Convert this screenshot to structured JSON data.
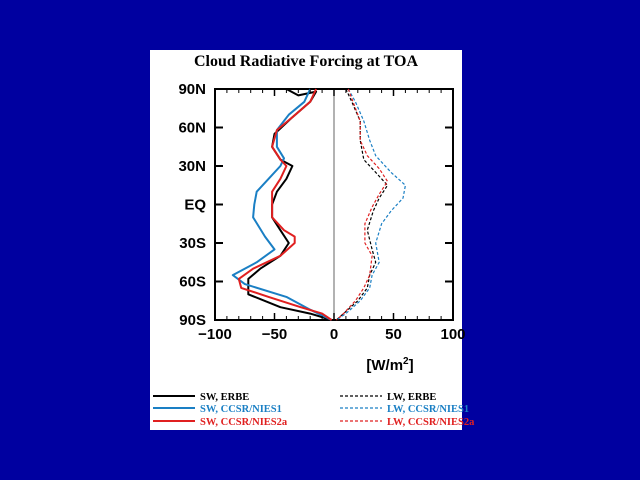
{
  "chart_data": {
    "type": "line",
    "title": "Cloud Radiative Forcing at TOA",
    "xlabel": "[W/m²]",
    "ylabel": "",
    "xlim": [
      -100,
      100
    ],
    "ylim": [
      -90,
      90
    ],
    "x_ticks": [
      "−100",
      "−50",
      "0",
      "50",
      "100"
    ],
    "y_ticks": [
      {
        "label": "90N",
        "lat": 90
      },
      {
        "label": "60N",
        "lat": 60
      },
      {
        "label": "30N",
        "lat": 30
      },
      {
        "label": "EQ",
        "lat": 0
      },
      {
        "label": "30S",
        "lat": -30
      },
      {
        "label": "60S",
        "lat": -60
      },
      {
        "label": "90S",
        "lat": -90
      }
    ],
    "x_units_label": "[W/m",
    "x_units_sup": "2",
    "x_units_close": "]",
    "series": [
      {
        "name": "SW, ERBE",
        "color": "#000000",
        "dash": "solid",
        "points": [
          [
            -40,
            90
          ],
          [
            -30,
            85
          ],
          [
            -15,
            88
          ],
          [
            -20,
            80
          ],
          [
            -35,
            68
          ],
          [
            -50,
            55
          ],
          [
            -52,
            45
          ],
          [
            -45,
            35
          ],
          [
            -35,
            30
          ],
          [
            -40,
            20
          ],
          [
            -48,
            10
          ],
          [
            -52,
            0
          ],
          [
            -52,
            -10
          ],
          [
            -45,
            -20
          ],
          [
            -38,
            -30
          ],
          [
            -45,
            -40
          ],
          [
            -62,
            -50
          ],
          [
            -72,
            -58
          ],
          [
            -72,
            -70
          ],
          [
            -45,
            -80
          ],
          [
            -20,
            -85
          ],
          [
            -2,
            -90
          ]
        ]
      },
      {
        "name": "SW, CCSR/NIES1",
        "color": "#1a7fc4",
        "dash": "solid",
        "points": [
          [
            -20,
            90
          ],
          [
            -25,
            80
          ],
          [
            -38,
            70
          ],
          [
            -48,
            58
          ],
          [
            -48,
            45
          ],
          [
            -42,
            36
          ],
          [
            -45,
            30
          ],
          [
            -55,
            20
          ],
          [
            -65,
            10
          ],
          [
            -67,
            0
          ],
          [
            -68,
            -10
          ],
          [
            -58,
            -25
          ],
          [
            -50,
            -35
          ],
          [
            -65,
            -45
          ],
          [
            -85,
            -55
          ],
          [
            -75,
            -62
          ],
          [
            -40,
            -72
          ],
          [
            -20,
            -82
          ],
          [
            -2,
            -90
          ]
        ]
      },
      {
        "name": "SW, CCSR/NIES2a",
        "color": "#e02020",
        "dash": "solid",
        "points": [
          [
            -15,
            90
          ],
          [
            -20,
            80
          ],
          [
            -35,
            68
          ],
          [
            -48,
            58
          ],
          [
            -52,
            45
          ],
          [
            -45,
            35
          ],
          [
            -40,
            30
          ],
          [
            -45,
            20
          ],
          [
            -52,
            10
          ],
          [
            -52,
            0
          ],
          [
            -52,
            -10
          ],
          [
            -42,
            -20
          ],
          [
            -33,
            -25
          ],
          [
            -33,
            -30
          ],
          [
            -45,
            -40
          ],
          [
            -68,
            -50
          ],
          [
            -80,
            -58
          ],
          [
            -78,
            -65
          ],
          [
            -55,
            -72
          ],
          [
            -28,
            -80
          ],
          [
            -10,
            -85
          ],
          [
            -2,
            -90
          ]
        ]
      },
      {
        "name": "LW, ERBE",
        "color": "#000000",
        "dash": "dashed",
        "points": [
          [
            10,
            90
          ],
          [
            15,
            80
          ],
          [
            22,
            65
          ],
          [
            22,
            50
          ],
          [
            25,
            35
          ],
          [
            35,
            25
          ],
          [
            45,
            15
          ],
          [
            38,
            5
          ],
          [
            33,
            -5
          ],
          [
            28,
            -20
          ],
          [
            32,
            -35
          ],
          [
            35,
            -45
          ],
          [
            30,
            -55
          ],
          [
            28,
            -65
          ],
          [
            20,
            -75
          ],
          [
            8,
            -85
          ],
          [
            2,
            -90
          ]
        ]
      },
      {
        "name": "LW, CCSR/NIES1",
        "color": "#1a7fc4",
        "dash": "dashed",
        "points": [
          [
            12,
            90
          ],
          [
            18,
            80
          ],
          [
            25,
            65
          ],
          [
            30,
            50
          ],
          [
            35,
            38
          ],
          [
            48,
            25
          ],
          [
            60,
            15
          ],
          [
            58,
            5
          ],
          [
            48,
            -5
          ],
          [
            40,
            -15
          ],
          [
            35,
            -30
          ],
          [
            38,
            -45
          ],
          [
            32,
            -55
          ],
          [
            30,
            -65
          ],
          [
            22,
            -75
          ],
          [
            10,
            -85
          ],
          [
            2,
            -90
          ]
        ]
      },
      {
        "name": "LW, CCSR/NIES2a",
        "color": "#e02020",
        "dash": "dashed",
        "points": [
          [
            12,
            90
          ],
          [
            16,
            80
          ],
          [
            22,
            65
          ],
          [
            22,
            50
          ],
          [
            28,
            38
          ],
          [
            38,
            28
          ],
          [
            45,
            18
          ],
          [
            38,
            8
          ],
          [
            32,
            -2
          ],
          [
            26,
            -15
          ],
          [
            26,
            -30
          ],
          [
            32,
            -40
          ],
          [
            30,
            -55
          ],
          [
            25,
            -65
          ],
          [
            18,
            -75
          ],
          [
            8,
            -85
          ],
          [
            2,
            -90
          ]
        ]
      }
    ],
    "legend_position": "bottom"
  }
}
